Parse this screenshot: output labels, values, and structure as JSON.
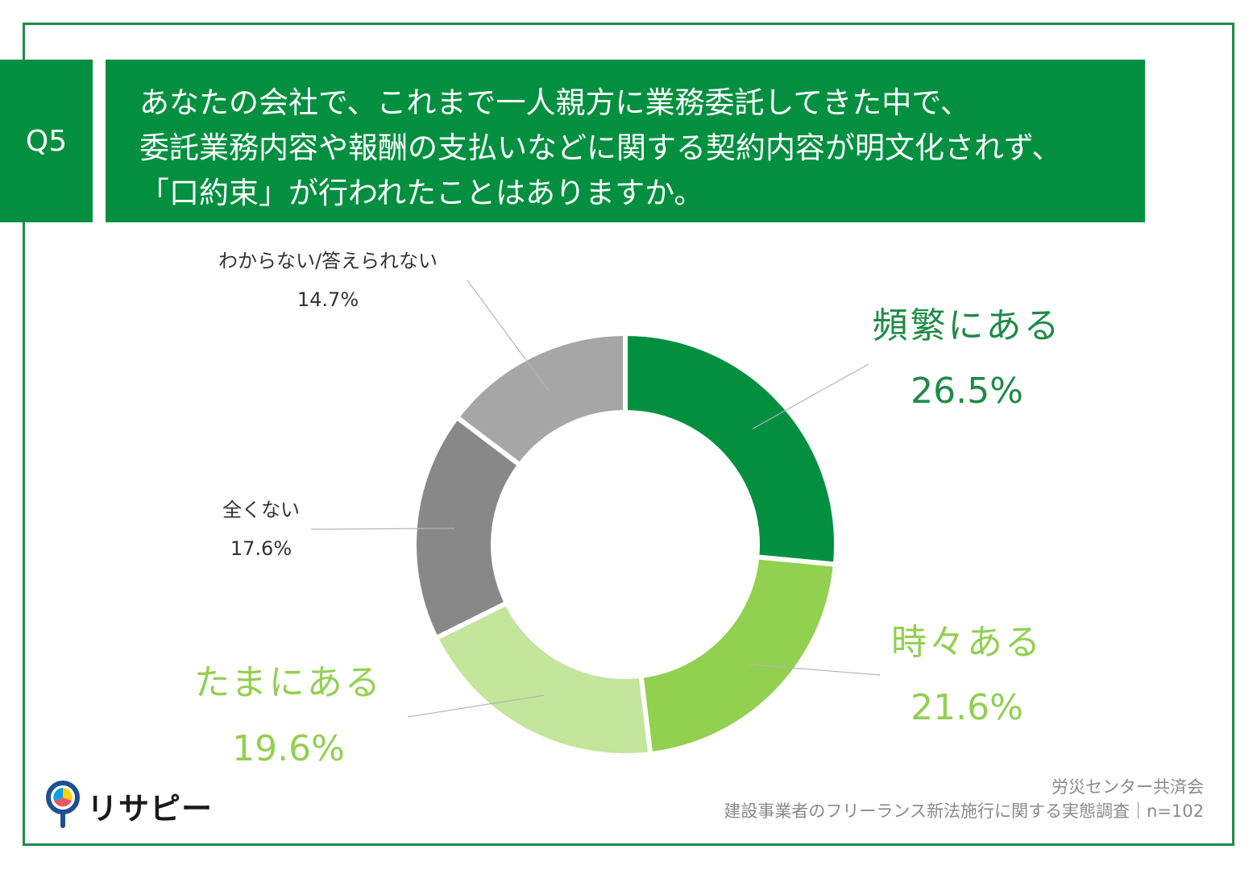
{
  "question": {
    "number": "Q5",
    "lines": [
      "あなたの会社で、これまで一人親方に業務委託してきた中で、",
      "委託業務内容や報酬の支払いなどに関する契約内容が明文化されず、",
      "「口約束」が行われたことはありますか。"
    ]
  },
  "chart_data": {
    "type": "pie",
    "style": "donut",
    "start": "top",
    "direction": "clockwise",
    "categories": [
      "頻繁にある",
      "時々ある",
      "たまにある",
      "全くない",
      "わからない/答えられない"
    ],
    "values": [
      26.5,
      21.6,
      19.6,
      17.6,
      14.7
    ],
    "value_labels": [
      "26.5%",
      "21.6%",
      "19.6%",
      "17.6%",
      "14.7%"
    ],
    "colors": [
      "#029040",
      "#92d050",
      "#c3e59c",
      "#888888",
      "#a6a6a6"
    ],
    "label_colors": [
      "#1e8b45",
      "#92d050",
      "#92d050",
      "#333333",
      "#333333"
    ]
  },
  "source": {
    "org": "労災センター共済会",
    "survey": "建設事業者のフリーランス新法施行に関する実態調査｜n=102"
  },
  "logo": {
    "text": "リサピー",
    "colors": [
      "#ffd200",
      "#e9546b",
      "#00a0e9",
      "#1d4f91"
    ]
  }
}
